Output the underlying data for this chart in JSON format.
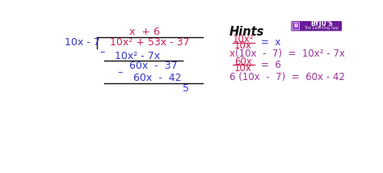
{
  "bg_color": "#ffffff",
  "blue": "#3333cc",
  "red": "#cc2255",
  "purple": "#993399",
  "dark_gray": "#333333",
  "black": "#111111",
  "byju_logo_color": "#6a1b9a",
  "left": {
    "quotient": "x  + 6",
    "divisor": "10x - 7",
    "dividend": "10x² + 53x - 37",
    "sub1": "10x² - 7x",
    "remainder1": "60x  -  37",
    "sub2": "60x  -  42",
    "remainder2": "5"
  },
  "hints": {
    "title": "Hints",
    "h1_num": "10x²",
    "h1_den": "10x",
    "h2_left": "x",
    "h2_right": "(10x  -  7)  =  10x² - 7x",
    "h3_num": "60x",
    "h3_den": "10x",
    "h4": "6 (10x  -  7)  =  60x - 42"
  }
}
